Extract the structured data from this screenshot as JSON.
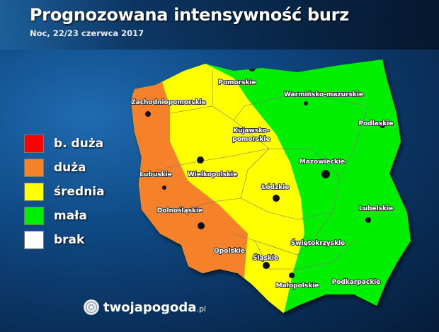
{
  "title": "Prognozowana intensywność burz",
  "subtitle": "Noc, 22/23 czerwca 2017",
  "legend": [
    {
      "label": "b. duża",
      "color": "#ff0000"
    },
    {
      "label": "duża",
      "color": "#f5822a"
    },
    {
      "label": "średnia",
      "color": "#ffff00"
    },
    {
      "label": "mała",
      "color": "#00ee00"
    },
    {
      "label": "brak",
      "color": "#ffffff"
    }
  ],
  "regions": {
    "pomorskie": "Pomorskie",
    "warminsko": "Warmińsko-mazurskie",
    "zachodnio": "Zachodniopomorskie",
    "kujawsko1": "Kujawsko-",
    "kujawsko2": "pomorskie",
    "podlaskie": "Podlaskie",
    "mazowieckie": "Mazowieckie",
    "lubuskie": "Lubuskie",
    "wielkopolskie": "Wielkopolskie",
    "lodzkie": "Łódzkie",
    "lubelskie": "Lubelskie",
    "dolnoslaskie": "Dolnośląskie",
    "opolskie": "Opolskie",
    "swietokrzyskie": "Świętokrzyskie",
    "slaskie": "Śląskie",
    "malopolskie": "Małopolskie",
    "podkarpackie": "Podkarpackie"
  },
  "logo": {
    "name": "twojapogoda",
    "tld": ".pl"
  }
}
